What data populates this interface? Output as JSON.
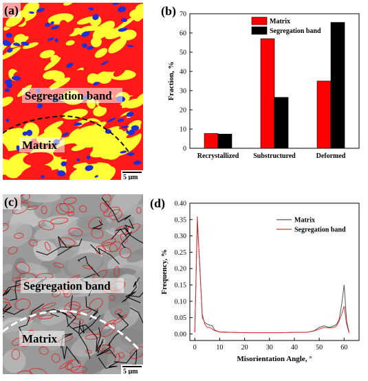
{
  "panels": {
    "a": {
      "label": "(a)",
      "annotations": [
        "Segregation band",
        "Matrix"
      ],
      "scale_bar": "5 μm",
      "colors": {
        "deformed": "#ff1a1a",
        "substructured": "#ffff33",
        "recrystallized": "#1f2fd6"
      }
    },
    "c": {
      "label": "(c)",
      "annotations": [
        "Segregation band",
        "Matrix"
      ],
      "scale_bar": "5 μm",
      "colors": {
        "low_angle_boundaries": "#e02020",
        "high_angle_boundaries": "#000000"
      }
    }
  },
  "chart_data": [
    {
      "panel_label": "(b)",
      "type": "bar",
      "categories": [
        "Recrystallized",
        "Substructured",
        "Deformed"
      ],
      "series": [
        {
          "name": "Matrix",
          "values": [
            7.7,
            57,
            35
          ],
          "color": "#ff0000"
        },
        {
          "name": "Segregation band",
          "values": [
            7.4,
            26.5,
            65.5
          ],
          "color": "#000000"
        }
      ],
      "ylabel": "Fraction, %",
      "xlabel": "",
      "ylim": [
        0,
        70
      ],
      "yticks": [
        0,
        10,
        20,
        30,
        40,
        50,
        60,
        70
      ],
      "legend": "top-center",
      "grid": false
    },
    {
      "panel_label": "(d)",
      "type": "line",
      "xlabel": "Misorientation Angle, °",
      "ylabel": "Frequency, %",
      "xlim": [
        -2,
        66
      ],
      "ylim": [
        -0.02,
        0.4
      ],
      "xticks": [
        0,
        10,
        20,
        30,
        40,
        50,
        60
      ],
      "yticks": [
        0.0,
        0.05,
        0.1,
        0.15,
        0.2,
        0.25,
        0.3,
        0.35,
        0.4
      ],
      "legend": "top-right",
      "grid": false,
      "series": [
        {
          "name": "Matrix",
          "color": "#555555",
          "x": [
            0,
            1,
            2,
            3,
            4,
            5,
            6,
            7,
            8,
            10,
            12,
            15,
            20,
            25,
            30,
            35,
            40,
            45,
            48,
            50,
            52,
            54,
            56,
            57,
            58,
            59,
            60,
            61,
            62
          ],
          "y": [
            0.005,
            0.34,
            0.21,
            0.05,
            0.035,
            0.03,
            0.027,
            0.025,
            0.012,
            0.006,
            0.006,
            0.005,
            0.004,
            0.004,
            0.004,
            0.004,
            0.005,
            0.005,
            0.01,
            0.02,
            0.025,
            0.02,
            0.025,
            0.03,
            0.045,
            0.09,
            0.15,
            0.04,
            0.005
          ]
        },
        {
          "name": "Segregation band",
          "color": "#e03030",
          "x": [
            0,
            1,
            2,
            3,
            4,
            5,
            6,
            7,
            8,
            10,
            12,
            15,
            20,
            25,
            30,
            35,
            40,
            45,
            48,
            50,
            52,
            54,
            56,
            57,
            58,
            59,
            60,
            61,
            62
          ],
          "y": [
            0.005,
            0.36,
            0.2,
            0.06,
            0.03,
            0.02,
            0.02,
            0.015,
            0.01,
            0.006,
            0.005,
            0.005,
            0.004,
            0.004,
            0.004,
            0.004,
            0.005,
            0.005,
            0.009,
            0.015,
            0.02,
            0.018,
            0.02,
            0.025,
            0.04,
            0.06,
            0.085,
            0.03,
            0.003
          ]
        }
      ]
    }
  ]
}
